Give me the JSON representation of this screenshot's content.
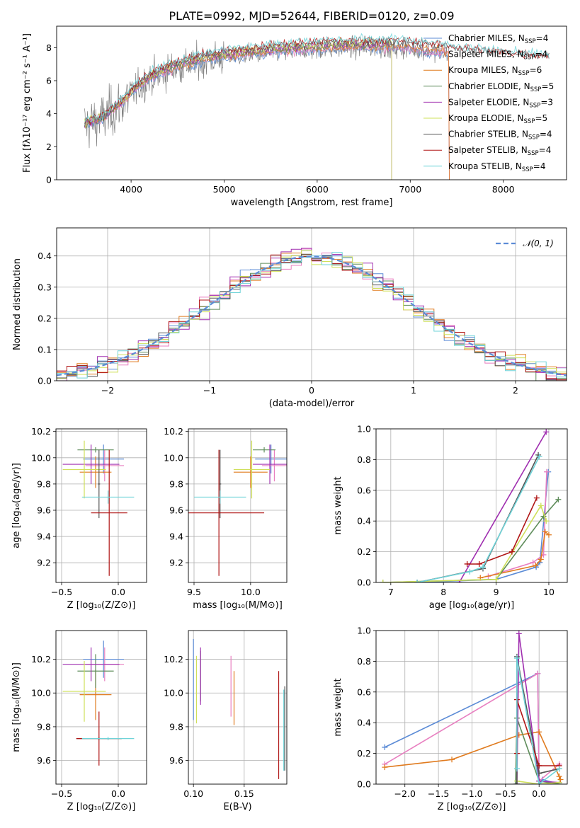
{
  "colors": {
    "chabrier_miles": "#5b8bd6",
    "salpeter_miles": "#e87fc0",
    "kroupa_miles": "#e07b1f",
    "chabrier_elodie": "#5e8c5a",
    "salpeter_elodie": "#a02fb0",
    "kroupa_elodie": "#cfe05a",
    "chabrier_stelib": "#555555",
    "salpeter_stelib": "#b01515",
    "kroupa_stelib": "#6fd3d8",
    "spectrum": "#808080",
    "normal": "#5b8bd6"
  },
  "chart_data": [
    {
      "id": "spectrum",
      "type": "line",
      "title": "PLATE=0992, MJD=52644, FIBERID=0120, z=0.09",
      "xlabel": "wavelength [Angstrom, rest frame]",
      "ylabel": "Flux [fλ10⁻¹⁷ erg cm⁻² s⁻¹ A⁻¹]",
      "xlim": [
        3200,
        8680
      ],
      "ylim": [
        0,
        9.3
      ],
      "xticks": [
        4000,
        5000,
        6000,
        7000,
        8000
      ],
      "yticks": [
        0,
        2,
        4,
        6,
        8
      ],
      "legend_position": "right",
      "series": [
        {
          "name": "Chabrier MILES, N",
          "sub": "SSP",
          "eq": "=4",
          "color": "chabrier_miles"
        },
        {
          "name": "Salpeter MILES, N",
          "sub": "SSP",
          "eq": "=4",
          "color": "salpeter_miles"
        },
        {
          "name": "Kroupa MILES, N",
          "sub": "SSP",
          "eq": "=6",
          "color": "kroupa_miles"
        },
        {
          "name": "Chabrier ELODIE, N",
          "sub": "SSP",
          "eq": "=5",
          "color": "chabrier_elodie"
        },
        {
          "name": "Salpeter ELODIE, N",
          "sub": "SSP",
          "eq": "=3",
          "color": "salpeter_elodie"
        },
        {
          "name": "Kroupa ELODIE, N",
          "sub": "SSP",
          "eq": "=5",
          "color": "kroupa_elodie"
        },
        {
          "name": "Chabrier STELIB, N",
          "sub": "SSP",
          "eq": "=4",
          "color": "chabrier_stelib"
        },
        {
          "name": "Salpeter STELIB, N",
          "sub": "SSP",
          "eq": "=4",
          "color": "salpeter_stelib"
        },
        {
          "name": "Kroupa STELIB, N",
          "sub": "SSP",
          "eq": "=4",
          "color": "kroupa_stelib"
        }
      ],
      "continuum": {
        "wavelength": [
          3500,
          3700,
          3900,
          4000,
          4200,
          4500,
          4800,
          5000,
          5500,
          6000,
          6500,
          7000,
          7500,
          8000,
          8500
        ],
        "flux": [
          3.3,
          3.7,
          4.6,
          5.2,
          6.1,
          6.8,
          7.2,
          7.4,
          7.7,
          7.9,
          8.0,
          7.95,
          7.6,
          7.3,
          7.1
        ]
      }
    },
    {
      "id": "residuals",
      "type": "line",
      "xlabel": "(data-model)/error",
      "ylabel": "Normed distribution",
      "xlim": [
        -2.5,
        2.5
      ],
      "ylim": [
        0,
        0.49
      ],
      "xticks": [
        -2,
        -1,
        0,
        1,
        2
      ],
      "yticks": [
        0.0,
        0.1,
        0.2,
        0.3,
        0.4
      ],
      "legend": "𝒩(0, 1)",
      "legend_position": "top-right"
    },
    {
      "id": "z_age",
      "type": "scatter",
      "xlabel": "Z [log₁₀(Z/Z⊙)]",
      "ylabel": "age  [log₁₀(age/yr)]",
      "xlim": [
        -0.55,
        0.25
      ],
      "ylim": [
        9.05,
        10.22
      ],
      "xticks": [
        -0.5,
        0.0
      ],
      "yticks": [
        9.2,
        9.4,
        9.6,
        9.8,
        10.0,
        10.2
      ],
      "points": [
        {
          "c": "chabrier_miles",
          "x": -0.13,
          "y": 9.99,
          "xe": 0.18,
          "ye": 0.11
        },
        {
          "c": "salpeter_miles",
          "x": -0.12,
          "y": 9.94,
          "xe": 0.17,
          "ye": 0.12
        },
        {
          "c": "kroupa_miles",
          "x": -0.2,
          "y": 9.89,
          "xe": 0.14,
          "ye": 0.12
        },
        {
          "c": "chabrier_elodie",
          "x": -0.2,
          "y": 10.06,
          "xe": 0.16,
          "ye": 0.02
        },
        {
          "c": "salpeter_elodie",
          "x": -0.24,
          "y": 9.95,
          "xe": 0.25,
          "ye": 0.15
        },
        {
          "c": "kroupa_elodie",
          "x": -0.3,
          "y": 9.91,
          "xe": 0.19,
          "ye": 0.22
        },
        {
          "c": "chabrier_stelib",
          "x": -0.17,
          "y": 9.8,
          "xe": 0.01,
          "ye": 0.26
        },
        {
          "c": "salpeter_stelib",
          "x": -0.08,
          "y": 9.58,
          "xe": 0.16,
          "ye": 0.48
        },
        {
          "c": "kroupa_stelib",
          "x": -0.09,
          "y": 9.7,
          "xe": 0.23,
          "ye": 0.05
        }
      ]
    },
    {
      "id": "mass_age",
      "type": "scatter",
      "xlabel": "mass [log₁₀(M/M⊙)]",
      "ylabel": "",
      "xlim": [
        9.45,
        10.32
      ],
      "ylim": [
        9.05,
        10.22
      ],
      "xticks": [
        9.5,
        10.0
      ],
      "yticks": [
        9.2,
        9.4,
        9.6,
        9.8,
        10.0,
        10.2
      ],
      "points": [
        {
          "c": "chabrier_miles",
          "x": 10.18,
          "y": 9.99,
          "xe": 0.14,
          "ye": 0.11
        },
        {
          "c": "salpeter_miles",
          "x": 10.21,
          "y": 9.94,
          "xe": 0.11,
          "ye": 0.12
        },
        {
          "c": "kroupa_miles",
          "x": 10.0,
          "y": 9.89,
          "xe": 0.15,
          "ye": 0.12
        },
        {
          "c": "chabrier_elodie",
          "x": 10.12,
          "y": 10.06,
          "xe": 0.1,
          "ye": 0.02
        },
        {
          "c": "salpeter_elodie",
          "x": 10.17,
          "y": 9.95,
          "xe": 0.15,
          "ye": 0.15
        },
        {
          "c": "kroupa_elodie",
          "x": 10.01,
          "y": 9.91,
          "xe": 0.16,
          "ye": 0.22
        },
        {
          "c": "chabrier_stelib",
          "x": 9.73,
          "y": 9.8,
          "xe": 0.01,
          "ye": 0.26
        },
        {
          "c": "salpeter_stelib",
          "x": 9.72,
          "y": 9.58,
          "xe": 0.4,
          "ye": 0.48
        },
        {
          "c": "kroupa_stelib",
          "x": 9.73,
          "y": 9.7,
          "xe": 0.23,
          "ye": 0.05
        }
      ]
    },
    {
      "id": "age_weight",
      "type": "line",
      "xlabel": "age  [log₁₀(age/yr)]",
      "ylabel": "mass weight",
      "xlim": [
        6.72,
        10.35
      ],
      "ylim": [
        0,
        1.0
      ],
      "xticks": [
        7,
        8,
        9,
        10
      ],
      "yticks": [
        0.0,
        0.2,
        0.4,
        0.6,
        0.8,
        1.0
      ],
      "series": [
        {
          "c": "chabrier_miles",
          "x": [
            7.5,
            9.0,
            9.76,
            9.83,
            9.99
          ],
          "y": [
            0.0,
            0.02,
            0.1,
            0.13,
            0.72
          ]
        },
        {
          "c": "salpeter_miles",
          "x": [
            8.85,
            9.7,
            9.9,
            9.96
          ],
          "y": [
            0.04,
            0.13,
            0.18,
            0.72
          ]
        },
        {
          "c": "kroupa_miles",
          "x": [
            8.7,
            9.75,
            9.85,
            9.93,
            10.0
          ],
          "y": [
            0.03,
            0.11,
            0.15,
            0.33,
            0.31
          ]
        },
        {
          "c": "chabrier_elodie",
          "x": [
            6.85,
            9.0,
            9.9,
            10.18
          ],
          "y": [
            0.0,
            0.02,
            0.43,
            0.54
          ]
        },
        {
          "c": "salpeter_elodie",
          "x": [
            8.3,
            9.95
          ],
          "y": [
            0.0,
            0.98
          ]
        },
        {
          "c": "kroupa_elodie",
          "x": [
            6.85,
            9.0,
            9.85,
            9.95
          ],
          "y": [
            0.0,
            0.02,
            0.5,
            0.4
          ]
        },
        {
          "c": "chabrier_stelib",
          "x": [
            7.5,
            8.75,
            9.8
          ],
          "y": [
            0.0,
            0.09,
            0.83
          ]
        },
        {
          "c": "salpeter_stelib",
          "x": [
            8.45,
            8.68,
            9.3,
            9.77
          ],
          "y": [
            0.12,
            0.12,
            0.2,
            0.55
          ]
        },
        {
          "c": "kroupa_stelib",
          "x": [
            7.5,
            8.5,
            8.75,
            9.82
          ],
          "y": [
            0.0,
            0.07,
            0.1,
            0.82
          ]
        }
      ]
    },
    {
      "id": "z_mass",
      "type": "scatter",
      "xlabel": "Z [log₁₀(Z/Z⊙)]",
      "ylabel": "mass [log₁₀(M/M⊙)]",
      "xlim": [
        -0.55,
        0.25
      ],
      "ylim": [
        9.46,
        10.37
      ],
      "xticks": [
        -0.5,
        0.0
      ],
      "yticks": [
        9.6,
        9.8,
        10.0,
        10.2
      ],
      "points": [
        {
          "c": "chabrier_miles",
          "x": -0.13,
          "y": 10.2,
          "xe": 0.18,
          "ye": 0.11
        },
        {
          "c": "salpeter_miles",
          "x": -0.12,
          "y": 10.17,
          "xe": 0.17,
          "ye": 0.1
        },
        {
          "c": "kroupa_miles",
          "x": -0.2,
          "y": 9.99,
          "xe": 0.14,
          "ye": 0.15
        },
        {
          "c": "chabrier_elodie",
          "x": -0.2,
          "y": 10.13,
          "xe": 0.16,
          "ye": 0.1
        },
        {
          "c": "salpeter_elodie",
          "x": -0.24,
          "y": 10.17,
          "xe": 0.25,
          "ye": 0.1
        },
        {
          "c": "kroupa_elodie",
          "x": -0.3,
          "y": 10.01,
          "xe": 0.19,
          "ye": 0.18
        },
        {
          "c": "chabrier_stelib",
          "x": -0.17,
          "y": 9.73,
          "xe": 0.2,
          "ye": 0.01
        },
        {
          "c": "salpeter_stelib",
          "x": -0.17,
          "y": 9.73,
          "xe": 0.2,
          "ye": 0.16
        },
        {
          "c": "kroupa_stelib",
          "x": -0.09,
          "y": 9.73,
          "xe": 0.23,
          "ye": 0.01
        }
      ]
    },
    {
      "id": "ebv_mass",
      "type": "scatter",
      "xlabel": "E(B-V)",
      "ylabel": "",
      "xlim": [
        0.095,
        0.192
      ],
      "ylim": [
        9.46,
        10.37
      ],
      "xticks": [
        0.1,
        0.15
      ],
      "yticks": [
        9.6,
        9.8,
        10.0,
        10.2
      ],
      "points": [
        {
          "c": "chabrier_miles",
          "x": 0.1,
          "y": 10.08,
          "xe": 0,
          "ye": 0.24
        },
        {
          "c": "salpeter_miles",
          "x": 0.137,
          "y": 10.04,
          "xe": 0,
          "ye": 0.18
        },
        {
          "c": "kroupa_miles",
          "x": 0.14,
          "y": 9.97,
          "xe": 0,
          "ye": 0.16
        },
        {
          "c": "chabrier_elodie",
          "x": 0.107,
          "y": 10.1,
          "xe": 0,
          "ye": 0.15
        },
        {
          "c": "salpeter_elodie",
          "x": 0.107,
          "y": 10.1,
          "xe": 0,
          "ye": 0.17
        },
        {
          "c": "kroupa_elodie",
          "x": 0.103,
          "y": 10.02,
          "xe": 0,
          "ye": 0.2
        },
        {
          "c": "chabrier_stelib",
          "x": 0.19,
          "y": 9.79,
          "xe": 0,
          "ye": 0.25
        },
        {
          "c": "salpeter_stelib",
          "x": 0.184,
          "y": 9.81,
          "xe": 0,
          "ye": 0.32
        },
        {
          "c": "kroupa_stelib",
          "x": 0.189,
          "y": 9.78,
          "xe": 0,
          "ye": 0.24
        }
      ]
    },
    {
      "id": "z_weight",
      "type": "line",
      "xlabel": "Z [log₁₀(Z/Z⊙)]",
      "ylabel": "mass weight",
      "xlim": [
        -2.43,
        0.42
      ],
      "ylim": [
        0,
        1.0
      ],
      "xticks": [
        -2.0,
        -1.5,
        -1.0,
        -0.5,
        0.0
      ],
      "yticks": [
        0.0,
        0.2,
        0.4,
        0.6,
        0.8,
        1.0
      ],
      "series": [
        {
          "c": "chabrier_miles",
          "x": [
            -2.3,
            -0.02,
            0.0,
            0.05,
            0.3
          ],
          "y": [
            0.24,
            0.72,
            0.0,
            0.03,
            0.0
          ]
        },
        {
          "c": "salpeter_miles",
          "x": [
            -2.3,
            -0.02,
            0.0,
            0.3
          ],
          "y": [
            0.13,
            0.72,
            0.02,
            0.13
          ]
        },
        {
          "c": "kroupa_miles",
          "x": [
            -2.3,
            -1.3,
            -0.3,
            0.0,
            0.3,
            0.32
          ],
          "y": [
            0.11,
            0.16,
            0.32,
            0.34,
            0.05,
            0.03
          ]
        },
        {
          "c": "chabrier_elodie",
          "x": [
            -0.35,
            -0.33,
            0.0,
            0.3
          ],
          "y": [
            0.0,
            0.43,
            0.02,
            0.0
          ]
        },
        {
          "c": "salpeter_elodie",
          "x": [
            -0.33,
            -0.3,
            0.0,
            0.3
          ],
          "y": [
            0.0,
            0.98,
            0.02,
            0.01
          ]
        },
        {
          "c": "kroupa_elodie",
          "x": [
            -0.33,
            0.0,
            0.3
          ],
          "y": [
            0.02,
            0.0,
            0.01
          ]
        },
        {
          "c": "chabrier_stelib",
          "x": [
            -0.33,
            -0.33,
            0.0,
            0.3
          ],
          "y": [
            0.0,
            0.83,
            0.07,
            0.1
          ]
        },
        {
          "c": "salpeter_stelib",
          "x": [
            -0.33,
            -0.33,
            0.0,
            0.3
          ],
          "y": [
            0.2,
            0.55,
            0.12,
            0.12
          ]
        },
        {
          "c": "kroupa_stelib",
          "x": [
            -0.33,
            -0.33,
            0.0,
            0.3
          ],
          "y": [
            0.1,
            0.82,
            0.0,
            0.1
          ]
        }
      ]
    }
  ]
}
